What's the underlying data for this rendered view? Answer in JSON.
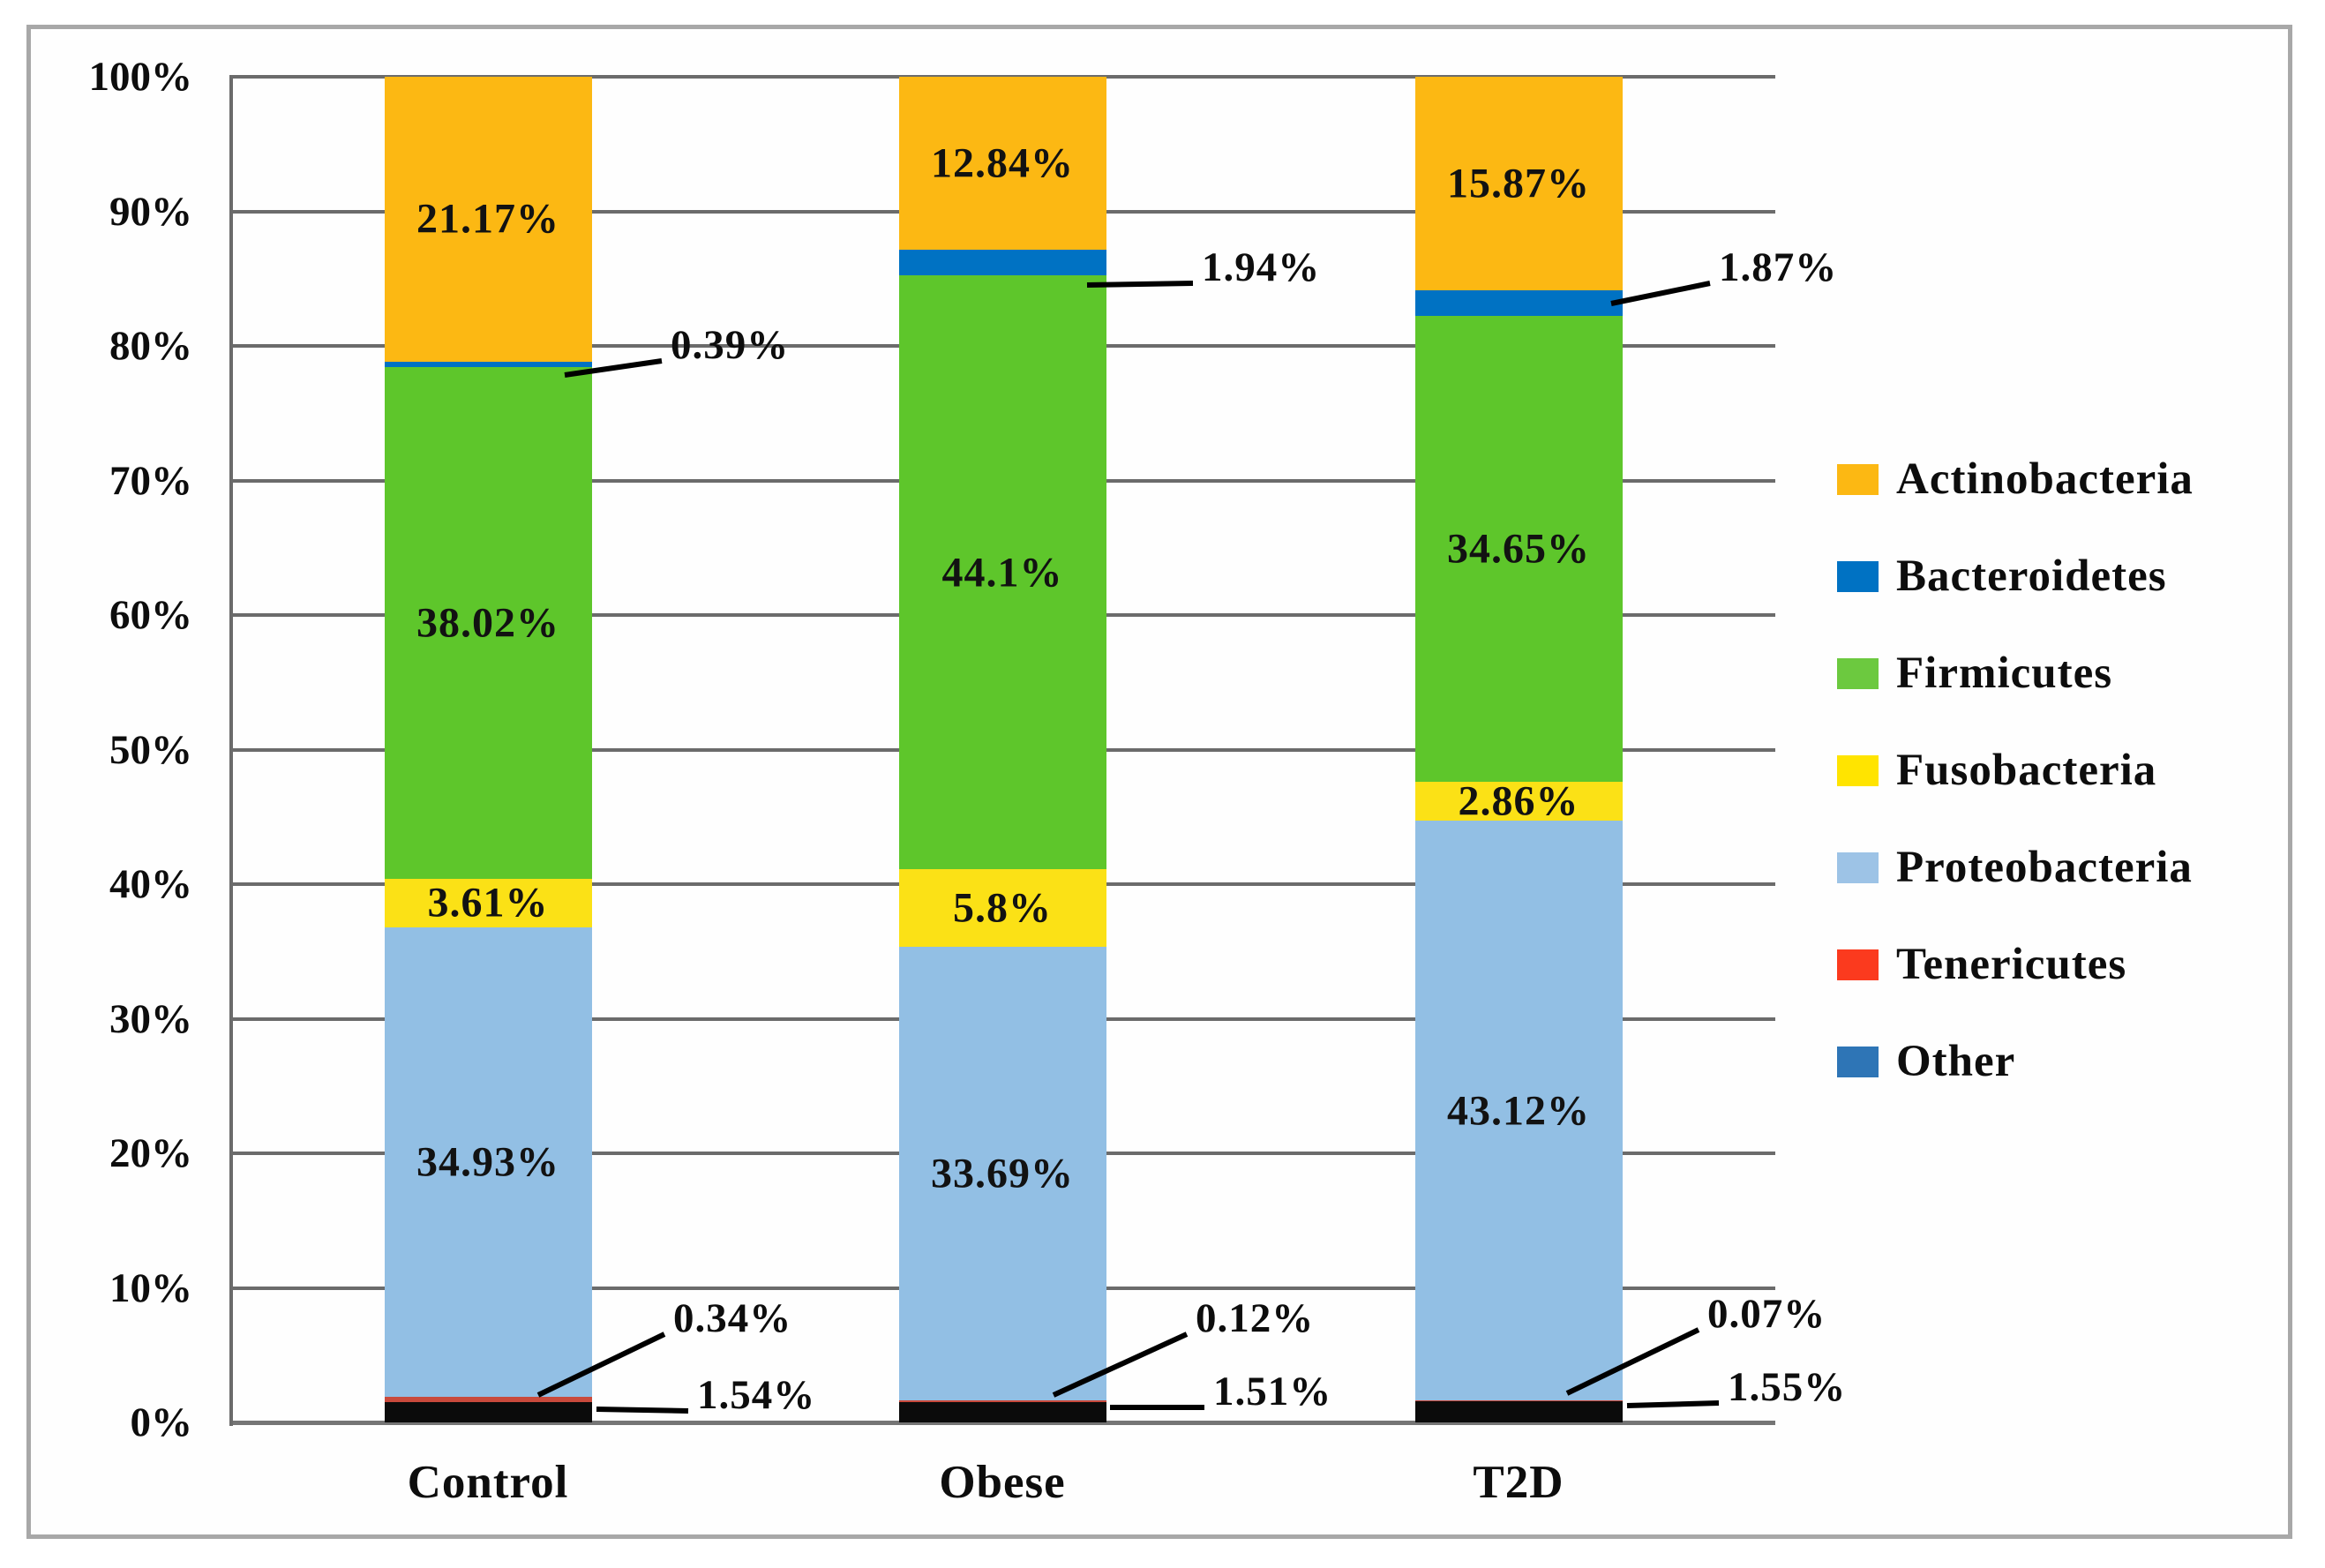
{
  "chart_data": {
    "type": "bar",
    "variant": "stacked-100-percent",
    "title": "",
    "xlabel": "",
    "ylabel": "",
    "grid": true,
    "legend_position": "right",
    "categories": [
      "Control",
      "Obese",
      "T2D"
    ],
    "y_axis": {
      "min": 0,
      "max": 100,
      "tick_step": 10,
      "tick_labels": [
        "0%",
        "10%",
        "20%",
        "30%",
        "40%",
        "50%",
        "60%",
        "70%",
        "80%",
        "90%",
        "100%"
      ]
    },
    "stack_order_bottom_to_top": [
      "Other",
      "Tenericutes",
      "Proteobacteria",
      "Fusobacteria",
      "Firmicutes",
      "Bacteroidetes",
      "Actinobacteria"
    ],
    "series": [
      {
        "name": "Actinobacteria",
        "color": "#FCB813",
        "legend_color": "#FCB813",
        "label_style": "inside",
        "values": [
          21.17,
          12.84,
          15.87
        ],
        "labels": [
          "21.17%",
          "12.84%",
          "15.87%"
        ]
      },
      {
        "name": "Bacteroidetes",
        "color": "#0072C3",
        "legend_color": "#0072C3",
        "label_style": "callout",
        "values": [
          0.39,
          1.94,
          1.87
        ],
        "labels": [
          "0.39%",
          "1.94%",
          "1.87%"
        ]
      },
      {
        "name": "Firmicutes",
        "color": "#5EC62B",
        "legend_color": "#6CC93F",
        "label_style": "inside",
        "values": [
          38.02,
          44.1,
          34.65
        ],
        "labels": [
          "38.02%",
          "44.1%",
          "34.65%"
        ]
      },
      {
        "name": "Fusobacteria",
        "color": "#FBE116",
        "legend_color": "#FFE400",
        "label_style": "inside",
        "values": [
          3.61,
          5.8,
          2.86
        ],
        "labels": [
          "3.61%",
          "5.8%",
          "2.86%"
        ]
      },
      {
        "name": "Proteobacteria",
        "color": "#92BFE4",
        "legend_color": "#9DC3E6",
        "label_style": "inside",
        "values": [
          34.93,
          33.69,
          43.12
        ],
        "labels": [
          "34.93%",
          "33.69%",
          "43.12%"
        ]
      },
      {
        "name": "Tenericutes",
        "color": "#C94A3C",
        "legend_color": "#FB3A1E",
        "label_style": "callout",
        "values": [
          0.34,
          0.12,
          0.07
        ],
        "labels": [
          "0.34%",
          "0.12%",
          "0.07%"
        ]
      },
      {
        "name": "Other",
        "color": "#0B0B0B",
        "legend_color": "#2E75B6",
        "label_style": "callout",
        "values": [
          1.54,
          1.51,
          1.55
        ],
        "labels": [
          "1.54%",
          "1.51%",
          "1.55%"
        ]
      }
    ],
    "legend": {
      "items": [
        "Actinobacteria",
        "Bacteroidetes",
        "Firmicutes",
        "Fusobacteria",
        "Proteobacteria",
        "Tenericutes",
        "Other"
      ]
    },
    "colors": {
      "gridline": "#6b6b6b",
      "axis": "#6b6b6b",
      "text": "#0d0d0d",
      "leader_line": "#000000",
      "frame_border": "#a8a8a8",
      "background": "#ffffff"
    }
  }
}
